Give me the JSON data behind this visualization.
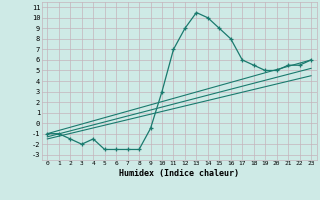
{
  "xlabel": "Humidex (Indice chaleur)",
  "bg_color": "#ceeae6",
  "grid_color": "#c4b4bc",
  "line_color": "#1a7a6e",
  "xlim": [
    -0.5,
    23.5
  ],
  "ylim": [
    -3.5,
    11.5
  ],
  "xticks": [
    0,
    1,
    2,
    3,
    4,
    5,
    6,
    7,
    8,
    9,
    10,
    11,
    12,
    13,
    14,
    15,
    16,
    17,
    18,
    19,
    20,
    21,
    22,
    23
  ],
  "yticks": [
    -3,
    -2,
    -1,
    0,
    1,
    2,
    3,
    4,
    5,
    6,
    7,
    8,
    9,
    10,
    11
  ],
  "line1_x": [
    0,
    1,
    2,
    3,
    4,
    5,
    6,
    7,
    8,
    9,
    10,
    11,
    12,
    13,
    14,
    15,
    16,
    17,
    18,
    19,
    20,
    21,
    22,
    23
  ],
  "line1_y": [
    -1,
    -1,
    -1.5,
    -2,
    -1.5,
    -2.5,
    -2.5,
    -2.5,
    -2.5,
    -0.5,
    3,
    7,
    9,
    10.5,
    10,
    9,
    8,
    6,
    5.5,
    5,
    5,
    5.5,
    5.5,
    6
  ],
  "line2_x": [
    0,
    23
  ],
  "line2_y": [
    -1.0,
    6.0
  ],
  "line3_x": [
    0,
    23
  ],
  "line3_y": [
    -1.3,
    5.2
  ],
  "line4_x": [
    0,
    23
  ],
  "line4_y": [
    -1.5,
    4.5
  ]
}
